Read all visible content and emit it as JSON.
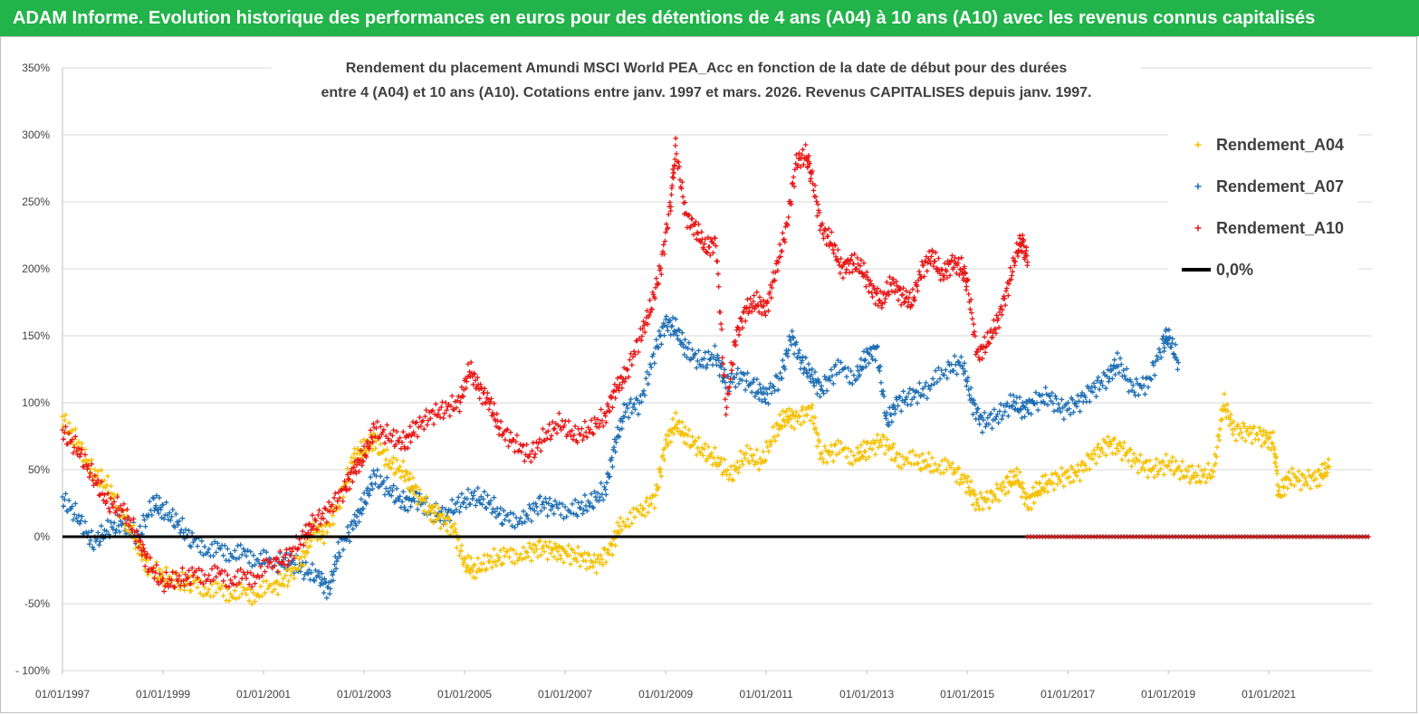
{
  "header": {
    "title": "ADAM Informe. Evolution historique des performances en euros pour des détentions de 4 ans (A04) à 10 ans (A10) avec les revenus connus capitalisés"
  },
  "colors": {
    "banner": "#22b34a",
    "A04": "#f5c000",
    "A07": "#1f6fb3",
    "A10": "#e81818",
    "zero": "#000000"
  },
  "chart_data": {
    "type": "scatter",
    "title_lines": [
      "Rendement du placement Amundi MSCI  World PEA_Acc en fonction de la date de début pour des durées",
      "entre 4 (A04) et 10 ans (A10). Cotations entre janv. 1997 et mars. 2026. Revenus CAPITALISES depuis janv. 1997."
    ],
    "xlabel": "",
    "ylabel": "",
    "x_range": [
      "1997-01-01",
      "2023-01-15"
    ],
    "ylim": [
      -100,
      350
    ],
    "y_ticks": [
      "- 100%",
      "-50%",
      "0%",
      "50%",
      "100%",
      "150%",
      "200%",
      "250%",
      "300%",
      "350%"
    ],
    "y_tick_values": [
      -100,
      -50,
      0,
      50,
      100,
      150,
      200,
      250,
      300,
      350
    ],
    "x_ticks": [
      "01/01/1997",
      "01/01/1999",
      "01/01/2001",
      "01/01/2003",
      "01/01/2005",
      "01/01/2007",
      "01/01/2009",
      "01/01/2011",
      "01/01/2013",
      "01/01/2015",
      "01/01/2017",
      "01/01/2019",
      "01/01/2021"
    ],
    "x_tick_values": [
      1997,
      1999,
      2001,
      2003,
      2005,
      2007,
      2009,
      2011,
      2013,
      2015,
      2017,
      2019,
      2021
    ],
    "grid": "horizontal",
    "legend_position": "top-right",
    "series": [
      {
        "name": "Rendement_A04",
        "key": "A04",
        "marker": "+",
        "points": [
          [
            1997.0,
            88
          ],
          [
            1997.3,
            70
          ],
          [
            1997.6,
            48
          ],
          [
            1997.9,
            38
          ],
          [
            1998.2,
            15
          ],
          [
            1998.5,
            -5
          ],
          [
            1998.7,
            -22
          ],
          [
            1999.0,
            -30
          ],
          [
            1999.3,
            -34
          ],
          [
            1999.6,
            -36
          ],
          [
            2000.0,
            -40
          ],
          [
            2000.4,
            -42
          ],
          [
            2000.8,
            -43
          ],
          [
            2001.2,
            -38
          ],
          [
            2001.5,
            -30
          ],
          [
            2001.8,
            -15
          ],
          [
            2002.0,
            5
          ],
          [
            2002.2,
            2
          ],
          [
            2002.5,
            25
          ],
          [
            2002.8,
            60
          ],
          [
            2003.0,
            65
          ],
          [
            2003.2,
            72
          ],
          [
            2003.5,
            55
          ],
          [
            2003.8,
            48
          ],
          [
            2004.0,
            35
          ],
          [
            2004.3,
            20
          ],
          [
            2004.5,
            15
          ],
          [
            2004.8,
            5
          ],
          [
            2005.0,
            -20
          ],
          [
            2005.2,
            -25
          ],
          [
            2005.5,
            -18
          ],
          [
            2005.8,
            -15
          ],
          [
            2006.2,
            -12
          ],
          [
            2006.5,
            -8
          ],
          [
            2006.8,
            -10
          ],
          [
            2007.0,
            -12
          ],
          [
            2007.3,
            -15
          ],
          [
            2007.6,
            -20
          ],
          [
            2007.9,
            -10
          ],
          [
            2008.1,
            10
          ],
          [
            2008.5,
            18
          ],
          [
            2008.8,
            30
          ],
          [
            2009.0,
            70
          ],
          [
            2009.2,
            85
          ],
          [
            2009.4,
            75
          ],
          [
            2009.7,
            65
          ],
          [
            2010.0,
            58
          ],
          [
            2010.3,
            45
          ],
          [
            2010.6,
            62
          ],
          [
            2010.9,
            55
          ],
          [
            2011.2,
            80
          ],
          [
            2011.4,
            90
          ],
          [
            2011.6,
            88
          ],
          [
            2011.9,
            95
          ],
          [
            2012.1,
            60
          ],
          [
            2012.4,
            65
          ],
          [
            2012.8,
            60
          ],
          [
            2013.0,
            65
          ],
          [
            2013.3,
            72
          ],
          [
            2013.6,
            60
          ],
          [
            2014.0,
            55
          ],
          [
            2014.3,
            55
          ],
          [
            2014.7,
            50
          ],
          [
            2015.0,
            40
          ],
          [
            2015.2,
            25
          ],
          [
            2015.5,
            30
          ],
          [
            2015.8,
            40
          ],
          [
            2016.0,
            45
          ],
          [
            2016.2,
            25
          ],
          [
            2016.4,
            35
          ],
          [
            2016.6,
            40
          ],
          [
            2016.9,
            45
          ],
          [
            2017.2,
            48
          ],
          [
            2017.5,
            60
          ],
          [
            2017.8,
            70
          ],
          [
            2018.1,
            65
          ],
          [
            2018.4,
            55
          ],
          [
            2018.7,
            50
          ],
          [
            2019.0,
            55
          ],
          [
            2019.3,
            48
          ],
          [
            2019.6,
            45
          ],
          [
            2019.9,
            48
          ],
          [
            2020.1,
            100
          ],
          [
            2020.3,
            80
          ],
          [
            2020.6,
            78
          ],
          [
            2020.9,
            75
          ],
          [
            2021.1,
            70
          ],
          [
            2021.2,
            30
          ],
          [
            2021.4,
            45
          ],
          [
            2021.7,
            42
          ],
          [
            2022.0,
            45
          ],
          [
            2022.2,
            52
          ]
        ]
      },
      {
        "name": "Rendement_A07",
        "key": "A07",
        "marker": "+",
        "points": [
          [
            1997.0,
            28
          ],
          [
            1997.3,
            15
          ],
          [
            1997.6,
            -5
          ],
          [
            1997.9,
            5
          ],
          [
            1998.2,
            10
          ],
          [
            1998.5,
            0
          ],
          [
            1998.8,
            25
          ],
          [
            1999.0,
            20
          ],
          [
            1999.3,
            10
          ],
          [
            1999.6,
            -5
          ],
          [
            2000.0,
            -10
          ],
          [
            2000.4,
            -12
          ],
          [
            2000.8,
            -15
          ],
          [
            2001.2,
            -20
          ],
          [
            2001.5,
            -18
          ],
          [
            2001.8,
            -25
          ],
          [
            2002.1,
            -30
          ],
          [
            2002.3,
            -40
          ],
          [
            2002.5,
            -10
          ],
          [
            2002.8,
            10
          ],
          [
            2003.0,
            25
          ],
          [
            2003.2,
            45
          ],
          [
            2003.5,
            35
          ],
          [
            2003.8,
            25
          ],
          [
            2004.0,
            30
          ],
          [
            2004.3,
            20
          ],
          [
            2004.6,
            15
          ],
          [
            2004.9,
            25
          ],
          [
            2005.2,
            30
          ],
          [
            2005.5,
            25
          ],
          [
            2005.8,
            12
          ],
          [
            2006.2,
            15
          ],
          [
            2006.5,
            25
          ],
          [
            2006.8,
            22
          ],
          [
            2007.2,
            20
          ],
          [
            2007.5,
            25
          ],
          [
            2007.8,
            35
          ],
          [
            2008.0,
            70
          ],
          [
            2008.2,
            95
          ],
          [
            2008.5,
            100
          ],
          [
            2008.8,
            140
          ],
          [
            2009.0,
            160
          ],
          [
            2009.2,
            155
          ],
          [
            2009.4,
            140
          ],
          [
            2009.7,
            130
          ],
          [
            2010.0,
            135
          ],
          [
            2010.2,
            115
          ],
          [
            2010.5,
            120
          ],
          [
            2010.8,
            110
          ],
          [
            2011.0,
            105
          ],
          [
            2011.3,
            120
          ],
          [
            2011.5,
            150
          ],
          [
            2011.7,
            130
          ],
          [
            2011.9,
            120
          ],
          [
            2012.1,
            110
          ],
          [
            2012.4,
            125
          ],
          [
            2012.8,
            120
          ],
          [
            2013.0,
            135
          ],
          [
            2013.2,
            140
          ],
          [
            2013.4,
            85
          ],
          [
            2013.6,
            100
          ],
          [
            2013.9,
            105
          ],
          [
            2014.2,
            110
          ],
          [
            2014.6,
            125
          ],
          [
            2014.9,
            130
          ],
          [
            2015.1,
            100
          ],
          [
            2015.3,
            85
          ],
          [
            2015.6,
            90
          ],
          [
            2015.9,
            100
          ],
          [
            2016.1,
            95
          ],
          [
            2016.3,
            100
          ],
          [
            2016.6,
            105
          ],
          [
            2016.9,
            95
          ],
          [
            2017.2,
            100
          ],
          [
            2017.5,
            110
          ],
          [
            2017.8,
            120
          ],
          [
            2018.0,
            130
          ],
          [
            2018.3,
            110
          ],
          [
            2018.6,
            115
          ],
          [
            2018.9,
            145
          ],
          [
            2019.0,
            150
          ],
          [
            2019.2,
            130
          ]
        ]
      },
      {
        "name": "Rendement_A10",
        "key": "A10",
        "marker": "+",
        "points": [
          [
            1997.0,
            78
          ],
          [
            1997.3,
            65
          ],
          [
            1997.6,
            45
          ],
          [
            1997.9,
            25
          ],
          [
            1998.2,
            20
          ],
          [
            1998.5,
            0
          ],
          [
            1998.7,
            -20
          ],
          [
            1999.0,
            -35
          ],
          [
            1999.3,
            -32
          ],
          [
            1999.6,
            -30
          ],
          [
            2000.0,
            -28
          ],
          [
            2000.4,
            -32
          ],
          [
            2000.8,
            -30
          ],
          [
            2001.2,
            -20
          ],
          [
            2001.5,
            -15
          ],
          [
            2001.8,
            0
          ],
          [
            2002.0,
            10
          ],
          [
            2002.3,
            20
          ],
          [
            2002.6,
            35
          ],
          [
            2002.8,
            50
          ],
          [
            2003.0,
            60
          ],
          [
            2003.2,
            80
          ],
          [
            2003.5,
            75
          ],
          [
            2003.8,
            70
          ],
          [
            2004.0,
            80
          ],
          [
            2004.3,
            90
          ],
          [
            2004.6,
            95
          ],
          [
            2004.9,
            100
          ],
          [
            2005.1,
            125
          ],
          [
            2005.3,
            110
          ],
          [
            2005.5,
            100
          ],
          [
            2005.7,
            80
          ],
          [
            2006.0,
            70
          ],
          [
            2006.3,
            60
          ],
          [
            2006.6,
            75
          ],
          [
            2006.9,
            85
          ],
          [
            2007.2,
            75
          ],
          [
            2007.5,
            80
          ],
          [
            2007.8,
            90
          ],
          [
            2008.0,
            110
          ],
          [
            2008.2,
            120
          ],
          [
            2008.5,
            150
          ],
          [
            2008.7,
            170
          ],
          [
            2008.9,
            200
          ],
          [
            2009.1,
            250
          ],
          [
            2009.2,
            290
          ],
          [
            2009.4,
            240
          ],
          [
            2009.6,
            230
          ],
          [
            2009.8,
            215
          ],
          [
            2010.0,
            220
          ],
          [
            2010.2,
            95
          ],
          [
            2010.4,
            150
          ],
          [
            2010.6,
            170
          ],
          [
            2010.8,
            175
          ],
          [
            2011.0,
            170
          ],
          [
            2011.2,
            200
          ],
          [
            2011.4,
            230
          ],
          [
            2011.6,
            280
          ],
          [
            2011.8,
            285
          ],
          [
            2011.9,
            270
          ],
          [
            2012.1,
            230
          ],
          [
            2012.3,
            220
          ],
          [
            2012.5,
            200
          ],
          [
            2012.7,
            205
          ],
          [
            2012.9,
            200
          ],
          [
            2013.1,
            185
          ],
          [
            2013.3,
            175
          ],
          [
            2013.5,
            190
          ],
          [
            2013.7,
            180
          ],
          [
            2013.9,
            175
          ],
          [
            2014.1,
            200
          ],
          [
            2014.3,
            210
          ],
          [
            2014.5,
            195
          ],
          [
            2014.7,
            205
          ],
          [
            2014.9,
            200
          ],
          [
            2015.0,
            190
          ],
          [
            2015.2,
            135
          ],
          [
            2015.4,
            145
          ],
          [
            2015.6,
            160
          ],
          [
            2015.8,
            185
          ],
          [
            2016.0,
            215
          ],
          [
            2016.1,
            220
          ],
          [
            2016.2,
            205
          ]
        ]
      },
      {
        "name": "0,0%",
        "key": "zero",
        "marker": "line",
        "points": [
          [
            1997.0,
            0
          ],
          [
            2023.0,
            0
          ]
        ]
      }
    ]
  }
}
